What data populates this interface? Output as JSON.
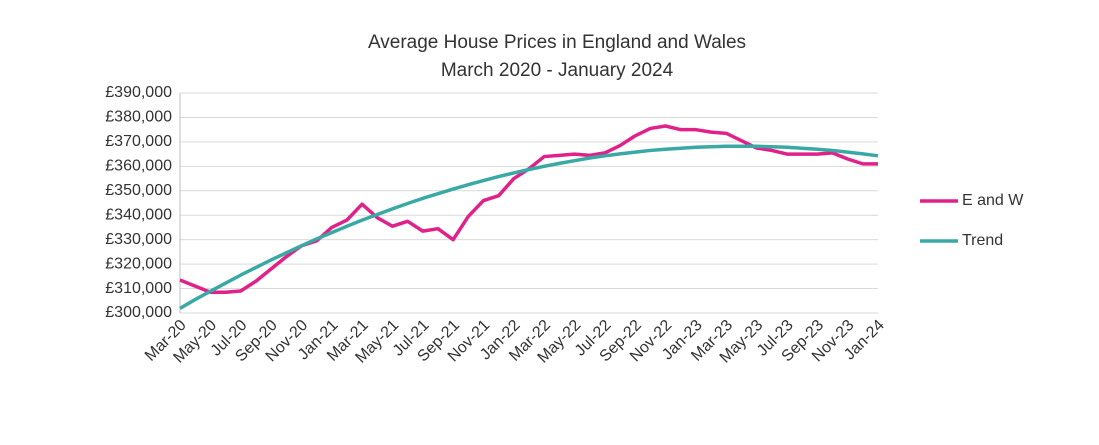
{
  "chart_data": {
    "type": "line",
    "title": "Average House Prices in England and Wales",
    "subtitle": "March 2020 - January 2024",
    "categories": [
      "Mar-20",
      null,
      "May-20",
      null,
      "Jul-20",
      null,
      "Sep-20",
      null,
      "Nov-20",
      null,
      "Jan-21",
      null,
      "Mar-21",
      null,
      "May-21",
      null,
      "Jul-21",
      null,
      "Sep-21",
      null,
      "Nov-21",
      null,
      "Jan-22",
      null,
      "Mar-22",
      null,
      "May-22",
      null,
      "Jul-22",
      null,
      "Sep-22",
      null,
      "Nov-22",
      null,
      "Jan-23",
      null,
      "Mar-23",
      null,
      "May-23",
      null,
      "Jul-23",
      null,
      "Sep-23",
      null,
      "Nov-23",
      null,
      "Jan-24"
    ],
    "series": [
      {
        "name": "E and W",
        "color": "#e0218a",
        "values": [
          313500,
          311000,
          308500,
          308500,
          309000,
          313000,
          318000,
          323000,
          327500,
          329500,
          335000,
          338000,
          344500,
          339000,
          335500,
          337500,
          333500,
          334500,
          330000,
          339500,
          346000,
          348000,
          355000,
          359000,
          364000,
          364500,
          365000,
          364500,
          365500,
          368500,
          372500,
          375500,
          376500,
          375000,
          375000,
          374000,
          373500,
          370500,
          367500,
          366500,
          365000,
          365000,
          365000,
          365500,
          363000,
          361000,
          361000
        ]
      },
      {
        "name": "Trend",
        "color": "#3aa9a5",
        "values": [
          301900,
          305500,
          308900,
          312200,
          315500,
          318600,
          321700,
          324600,
          327500,
          330300,
          332900,
          335500,
          338000,
          340300,
          342600,
          344800,
          346900,
          348800,
          350700,
          352500,
          354200,
          355800,
          357300,
          358700,
          360000,
          361200,
          362300,
          363400,
          364300,
          365100,
          365800,
          366500,
          367000,
          367400,
          367800,
          368000,
          368200,
          368200,
          368200,
          368000,
          367800,
          367400,
          367000,
          366500,
          365800,
          365100,
          364300
        ]
      }
    ],
    "ylim": [
      300000,
      390000
    ],
    "yticks": [
      {
        "value": 300000,
        "label": "£300,000"
      },
      {
        "value": 310000,
        "label": "£310,000"
      },
      {
        "value": 320000,
        "label": "£320,000"
      },
      {
        "value": 330000,
        "label": "£330,000"
      },
      {
        "value": 340000,
        "label": "£340,000"
      },
      {
        "value": 350000,
        "label": "£350,000"
      },
      {
        "value": 360000,
        "label": "£360,000"
      },
      {
        "value": 370000,
        "label": "£370,000"
      },
      {
        "value": 380000,
        "label": "£380,000"
      },
      {
        "value": 390000,
        "label": "£390,000"
      }
    ],
    "grid": true,
    "legend": "right"
  }
}
